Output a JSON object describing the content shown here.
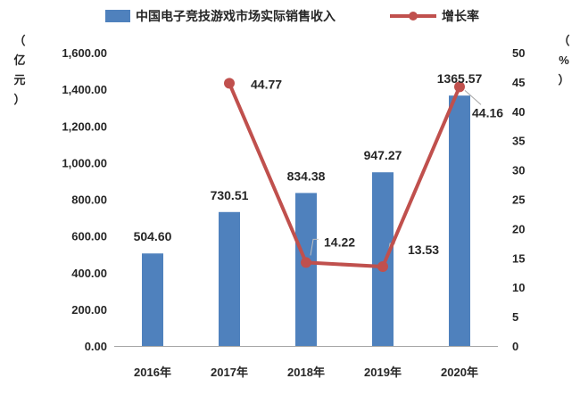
{
  "chart_data": {
    "type": "bar",
    "categories": [
      "2016年",
      "2017年",
      "2018年",
      "2019年",
      "2020年"
    ],
    "series": [
      {
        "name": "中国电子竞技游戏市场实际销售收入",
        "type": "bar",
        "axis": "left",
        "values": [
          504.6,
          730.51,
          834.38,
          947.27,
          1365.57
        ],
        "labels": [
          "504.60",
          "730.51",
          "834.38",
          "947.27",
          "1365.57"
        ],
        "color": "#4f81bd"
      },
      {
        "name": "增长率",
        "type": "line",
        "axis": "right",
        "values": [
          null,
          44.77,
          14.22,
          13.53,
          44.16
        ],
        "labels": [
          "",
          "44.77",
          "14.22",
          "13.53",
          "44.16"
        ],
        "color": "#c0504d"
      }
    ],
    "y_left": {
      "label": "（亿元）",
      "range": [
        0,
        1600
      ],
      "ticks": [
        "0.00",
        "200.00",
        "400.00",
        "600.00",
        "800.00",
        "1,000.00",
        "1,200.00",
        "1,400.00",
        "1,600.00"
      ]
    },
    "y_right": {
      "label": "（%）",
      "range": [
        0,
        50
      ],
      "ticks": [
        "0",
        "5",
        "10",
        "15",
        "20",
        "25",
        "30",
        "35",
        "40",
        "45",
        "50"
      ]
    },
    "grid": false,
    "legend_position": "top"
  }
}
